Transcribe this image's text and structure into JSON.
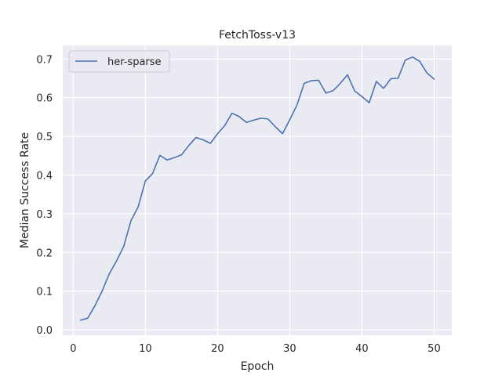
{
  "chart_data": {
    "type": "line",
    "title": "FetchToss-v13",
    "xlabel": "Epoch",
    "ylabel": "Median Success Rate",
    "xlim": [
      -1.45,
      52.45
    ],
    "ylim": [
      -0.014,
      0.735
    ],
    "xticks": [
      0,
      10,
      20,
      30,
      40,
      50
    ],
    "yticks": [
      0.0,
      0.1,
      0.2,
      0.3,
      0.4,
      0.5,
      0.6,
      0.7
    ],
    "ytick_labels": [
      "0.0",
      "0.1",
      "0.2",
      "0.3",
      "0.4",
      "0.5",
      "0.6",
      "0.7"
    ],
    "grid": true,
    "legend_position": "top-left",
    "colors": {
      "background": "#eaeaf2",
      "grid": "#ffffff",
      "line": "#4c72b0"
    },
    "series": [
      {
        "name": "her-sparse",
        "x": [
          1,
          2,
          3,
          4,
          5,
          6,
          7,
          8,
          9,
          10,
          11,
          12,
          13,
          14,
          15,
          16,
          17,
          18,
          19,
          20,
          21,
          22,
          23,
          24,
          25,
          26,
          27,
          28,
          29,
          30,
          31,
          32,
          33,
          34,
          35,
          36,
          37,
          38,
          39,
          40,
          41,
          42,
          43,
          44,
          45,
          46,
          47,
          48,
          49,
          50
        ],
        "y": [
          0.025,
          0.03,
          0.062,
          0.1,
          0.145,
          0.178,
          0.216,
          0.282,
          0.318,
          0.385,
          0.404,
          0.451,
          0.439,
          0.445,
          0.452,
          0.476,
          0.497,
          0.491,
          0.482,
          0.507,
          0.528,
          0.56,
          0.551,
          0.536,
          0.542,
          0.547,
          0.545,
          0.525,
          0.507,
          0.543,
          0.581,
          0.637,
          0.644,
          0.645,
          0.612,
          0.618,
          0.637,
          0.659,
          0.617,
          0.603,
          0.587,
          0.642,
          0.624,
          0.649,
          0.65,
          0.697,
          0.705,
          0.694,
          0.664,
          0.648
        ]
      }
    ]
  }
}
